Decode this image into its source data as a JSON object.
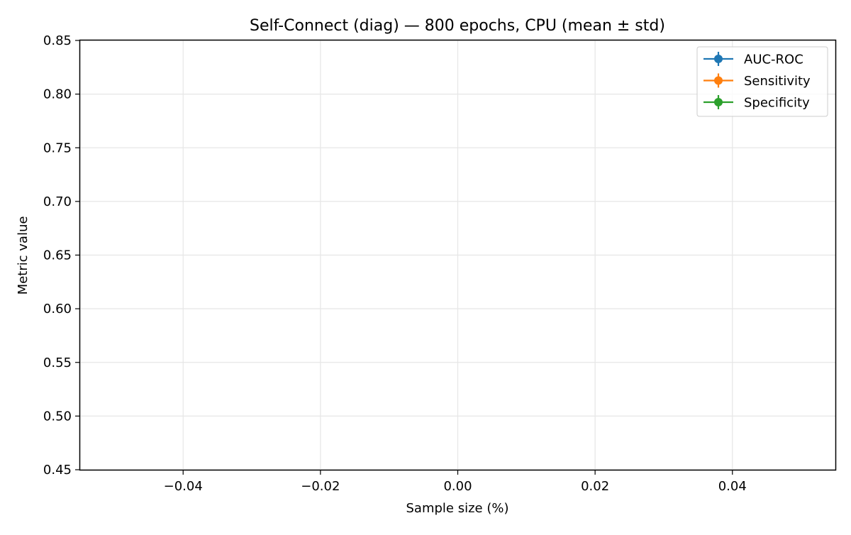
{
  "chart_data": {
    "type": "line",
    "title": "Self-Connect (diag) — 800 epochs, CPU (mean ± std)",
    "xlabel": "Sample size (%)",
    "ylabel": "Metric value",
    "xlim": [
      -0.055,
      0.055
    ],
    "ylim": [
      0.45,
      0.85
    ],
    "x_ticks": [
      {
        "value": -0.04,
        "label": "−0.04"
      },
      {
        "value": -0.02,
        "label": "−0.02"
      },
      {
        "value": 0.0,
        "label": "0.00"
      },
      {
        "value": 0.02,
        "label": "0.02"
      },
      {
        "value": 0.04,
        "label": "0.04"
      }
    ],
    "y_ticks": [
      {
        "value": 0.45,
        "label": "0.45"
      },
      {
        "value": 0.5,
        "label": "0.50"
      },
      {
        "value": 0.55,
        "label": "0.55"
      },
      {
        "value": 0.6,
        "label": "0.60"
      },
      {
        "value": 0.65,
        "label": "0.65"
      },
      {
        "value": 0.7,
        "label": "0.70"
      },
      {
        "value": 0.75,
        "label": "0.75"
      },
      {
        "value": 0.8,
        "label": "0.80"
      },
      {
        "value": 0.85,
        "label": "0.85"
      }
    ],
    "grid": true,
    "legend_position": "top-right",
    "series": [
      {
        "name": "AUC-ROC",
        "color": "#1f77b4",
        "x": [],
        "y": [],
        "yerr": []
      },
      {
        "name": "Sensitivity",
        "color": "#ff7f0e",
        "x": [],
        "y": [],
        "yerr": []
      },
      {
        "name": "Specificity",
        "color": "#2ca02c",
        "x": [],
        "y": [],
        "yerr": []
      }
    ]
  }
}
